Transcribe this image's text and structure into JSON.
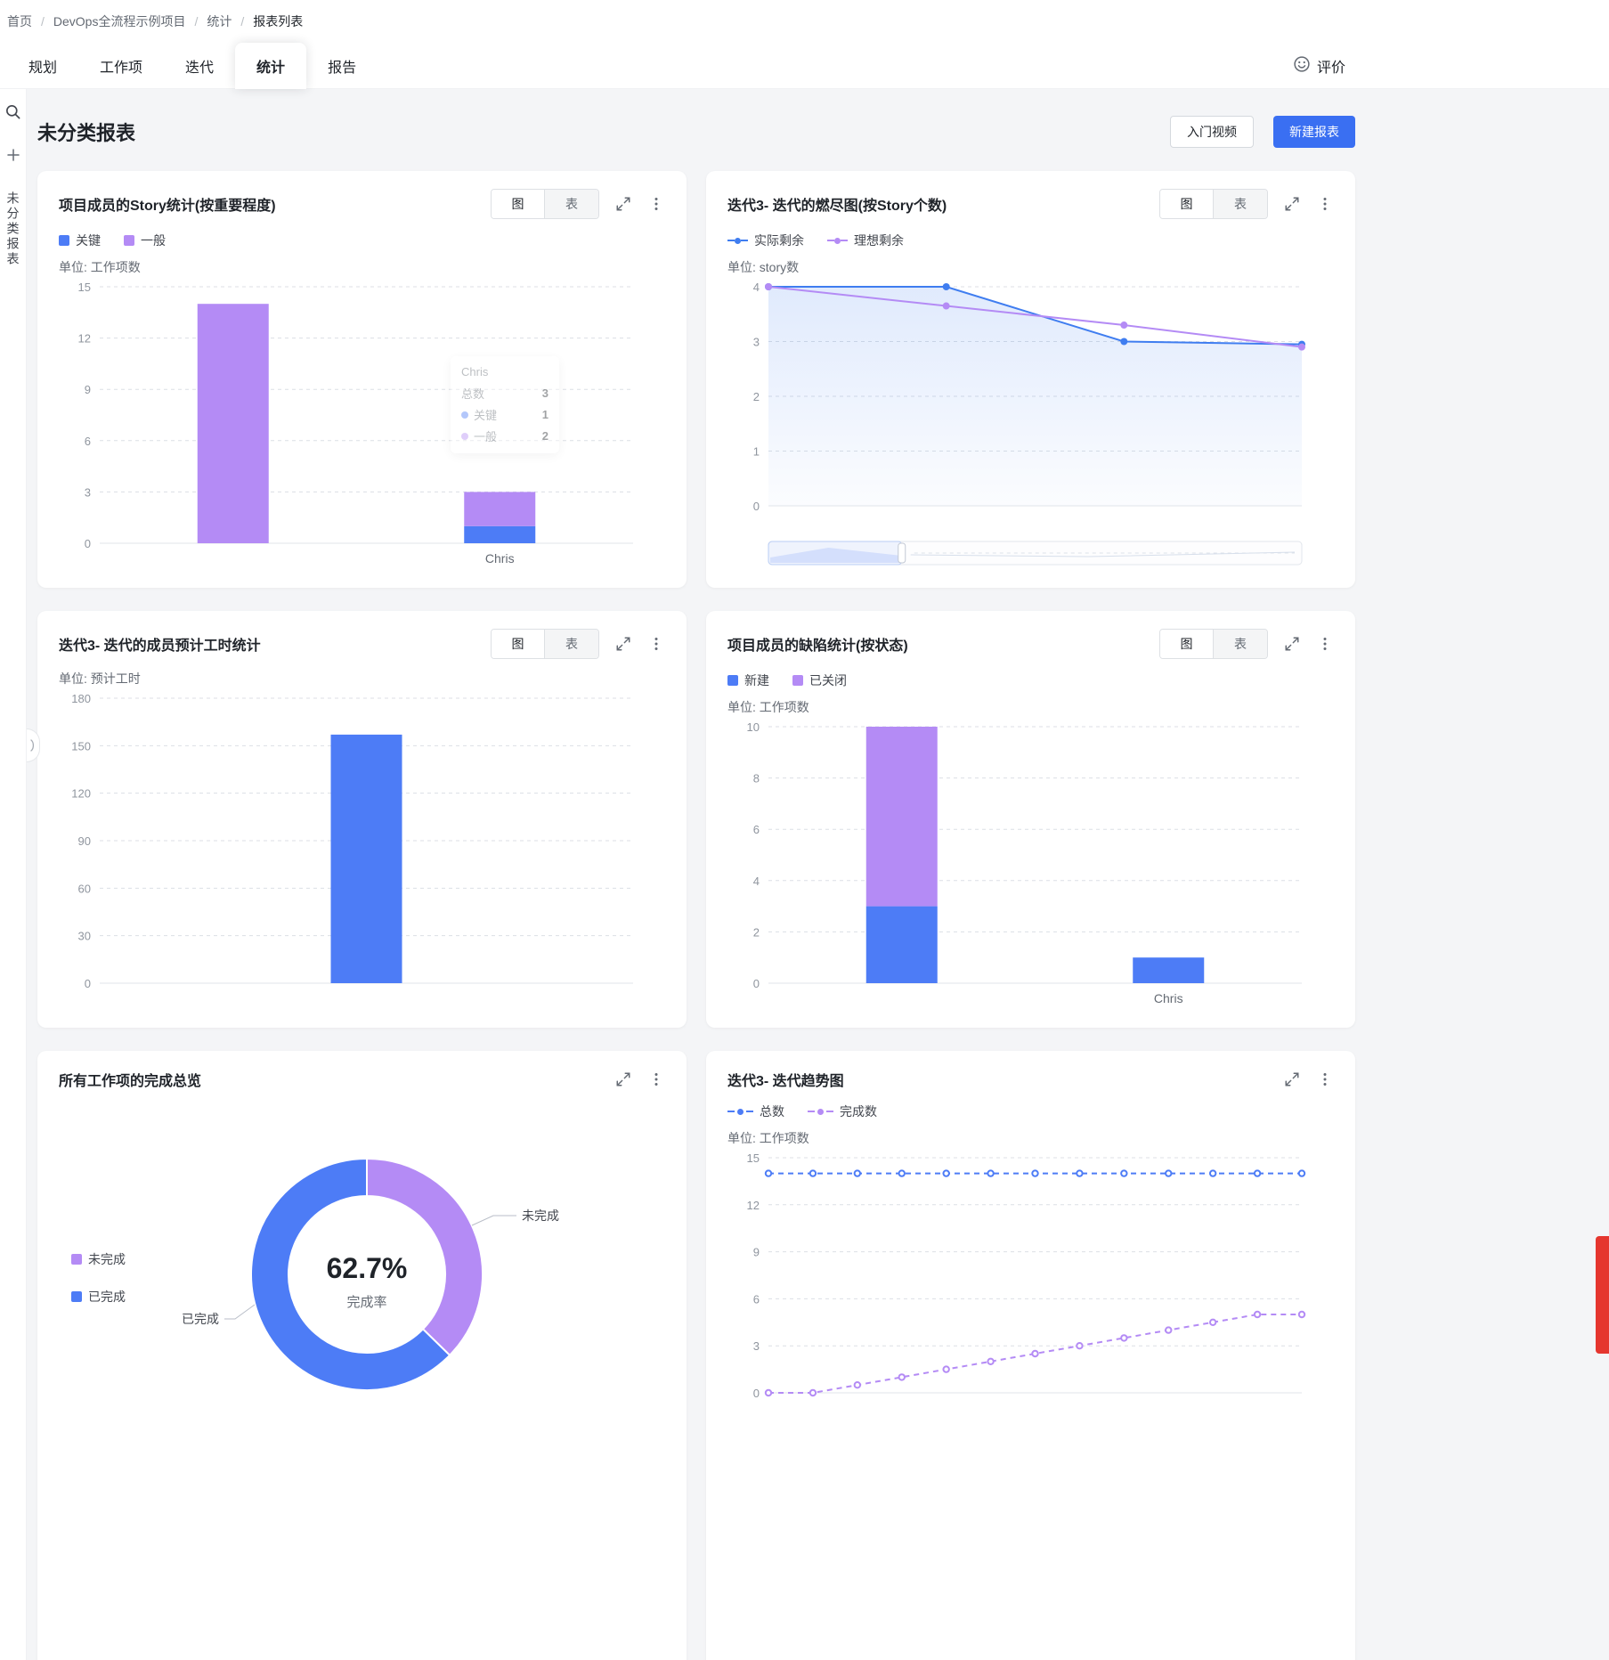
{
  "breadcrumb": {
    "separator": "/",
    "items": [
      "首页",
      "DevOps全流程示例项目",
      "统计",
      "报表列表"
    ]
  },
  "nav": {
    "tabs": [
      "规划",
      "工作项",
      "迭代",
      "统计",
      "报告"
    ],
    "active_tab": "统计",
    "feedback_label": "评价"
  },
  "sidebar": {
    "group_label": "未分类报表"
  },
  "page": {
    "title": "未分类报表",
    "video_button": "入门视频",
    "create_button": "新建报表"
  },
  "labels": {
    "chart_toggle": "图",
    "table_toggle": "表"
  },
  "colors": {
    "blue": "#4d7cf6",
    "purple": "#b48bf5",
    "primary_button": "#3a6ff2",
    "floating_tab": "#e5362f"
  },
  "charts": [
    {
      "type": "bar",
      "title": "项目成员的Story统计(按重要程度)",
      "unit": "单位: 工作项数",
      "ylim": [
        0,
        15
      ],
      "yticks": [
        0,
        3,
        6,
        9,
        12,
        15
      ],
      "categories": [
        "",
        "Chris"
      ],
      "series": [
        {
          "name": "关键",
          "color": "#4d7cf6",
          "values": [
            0,
            1
          ]
        },
        {
          "name": "一般",
          "color": "#b48bf5",
          "values": [
            14,
            2
          ]
        }
      ],
      "tooltip": {
        "name": "Chris",
        "total_label": "总数",
        "total": "3",
        "rows": [
          {
            "label": "关键",
            "value": "1"
          },
          {
            "label": "一般",
            "value": "2"
          }
        ]
      }
    },
    {
      "type": "line",
      "title": "迭代3- 迭代的燃尽图(按Story个数)",
      "unit": "单位: story数",
      "ylim": [
        0,
        4
      ],
      "yticks": [
        0,
        1,
        2,
        3,
        4
      ],
      "datazoom": true,
      "series": [
        {
          "name": "实际剩余",
          "color": "#3f7df0",
          "area": true,
          "values": [
            4,
            4,
            3,
            2.95
          ]
        },
        {
          "name": "理想剩余",
          "color": "#b48bf5",
          "values": [
            4,
            3.65,
            3.3,
            2.9
          ]
        }
      ]
    },
    {
      "type": "bar",
      "title": "迭代3- 迭代的成员预计工时统计",
      "unit": "单位: 预计工时",
      "ylim": [
        0,
        180
      ],
      "yticks": [
        0,
        30,
        60,
        90,
        120,
        150,
        180
      ],
      "categories": [
        ""
      ],
      "series": [
        {
          "name": "",
          "color": "#4d7cf6",
          "values": [
            157
          ]
        }
      ]
    },
    {
      "type": "bar",
      "title": "项目成员的缺陷统计(按状态)",
      "unit": "单位: 工作项数",
      "ylim": [
        0,
        10
      ],
      "yticks": [
        0,
        2,
        4,
        6,
        8,
        10
      ],
      "categories": [
        "",
        "Chris"
      ],
      "series": [
        {
          "name": "新建",
          "color": "#4d7cf6",
          "values": [
            3,
            1
          ]
        },
        {
          "name": "已关闭",
          "color": "#b48bf5",
          "values": [
            7,
            0
          ]
        }
      ]
    },
    {
      "type": "donut",
      "title": "所有工作项的完成总览",
      "center_value": "62.7%",
      "center_label": "完成率",
      "slices": [
        {
          "name": "未完成",
          "color": "#b48bf5",
          "value": 37.3
        },
        {
          "name": "已完成",
          "color": "#4d7cf6",
          "value": 62.7
        }
      ]
    },
    {
      "type": "line",
      "title": "迭代3- 迭代趋势图",
      "unit": "单位: 工作项数",
      "ylim": [
        0,
        15
      ],
      "yticks": [
        0,
        3,
        6,
        9,
        12,
        15
      ],
      "series": [
        {
          "name": "总数",
          "color": "#4d7cf6",
          "dashed": true,
          "hollow": true,
          "values": [
            14,
            14,
            14,
            14,
            14,
            14,
            14,
            14,
            14,
            14,
            14,
            14,
            14
          ]
        },
        {
          "name": "完成数",
          "color": "#b48bf5",
          "dashed": true,
          "hollow": true,
          "values": [
            0,
            0,
            0.5,
            1,
            1.5,
            2,
            2.5,
            3,
            3.5,
            4,
            4.5,
            5,
            5
          ]
        }
      ]
    }
  ]
}
